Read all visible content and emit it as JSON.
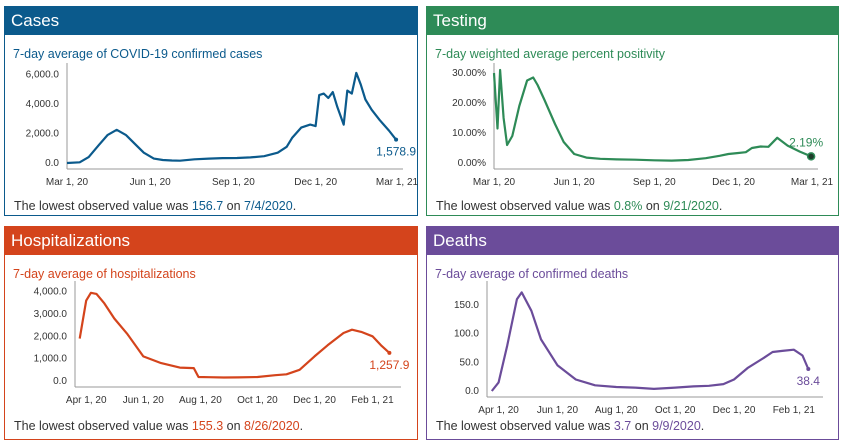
{
  "panels": [
    {
      "id": "cases",
      "title": "Cases",
      "color": "#0b5a8c",
      "subtitle": "7-day average of COVID-19 confirmed cases",
      "footer": {
        "prefix": "The lowest observed value was ",
        "value": "156.7",
        "mid": " on ",
        "date": "7/4/2020",
        "suffix": "."
      },
      "end_label": "1,578.9",
      "end_marker": "none"
    },
    {
      "id": "testing",
      "title": "Testing",
      "color": "#2e8b57",
      "subtitle": "7-day weighted average percent positivity",
      "footer": {
        "prefix": "The lowest observed value was ",
        "value": "0.8%",
        "mid": " on ",
        "date": "9/21/2020",
        "suffix": "."
      },
      "end_label": "2.19%",
      "end_marker": "circle"
    },
    {
      "id": "hospitalizations",
      "title": "Hospitalizations",
      "color": "#d4441c",
      "subtitle": "7-day average of hospitalizations",
      "footer": {
        "prefix": "The lowest observed value was ",
        "value": "155.3",
        "mid": " on ",
        "date": "8/26/2020",
        "suffix": "."
      },
      "end_label": "1,257.9",
      "end_marker": "none"
    },
    {
      "id": "deaths",
      "title": "Deaths",
      "color": "#6b4c9a",
      "subtitle": "7-day average of confirmed deaths",
      "footer": {
        "prefix": "The lowest observed value was ",
        "value": "3.7",
        "mid": " on ",
        "date": "9/9/2020",
        "suffix": "."
      },
      "end_label": "38.4",
      "end_marker": "none"
    }
  ],
  "chart_data": [
    {
      "type": "line",
      "title": "Cases",
      "subtitle": "7-day average of COVID-19 confirmed cases",
      "x_ticks": [
        "Mar 1, 20",
        "Jun 1, 20",
        "Sep 1, 20",
        "Dec 1, 20",
        "Mar 1, 21"
      ],
      "y_ticks": [
        "0.0",
        "2,000.0",
        "4,000.0",
        "6,000.0"
      ],
      "ylim": [
        0,
        6500
      ],
      "x": [
        "2020-03-01",
        "2020-03-15",
        "2020-03-25",
        "2020-04-05",
        "2020-04-15",
        "2020-04-25",
        "2020-05-05",
        "2020-05-15",
        "2020-05-25",
        "2020-06-05",
        "2020-06-15",
        "2020-06-25",
        "2020-07-04",
        "2020-07-20",
        "2020-08-05",
        "2020-08-20",
        "2020-09-05",
        "2020-09-20",
        "2020-10-05",
        "2020-10-20",
        "2020-10-30",
        "2020-11-05",
        "2020-11-15",
        "2020-11-25",
        "2020-12-01",
        "2020-12-05",
        "2020-12-10",
        "2020-12-15",
        "2020-12-20",
        "2020-12-25",
        "2021-01-01",
        "2021-01-05",
        "2021-01-10",
        "2021-01-15",
        "2021-01-20",
        "2021-01-25",
        "2021-02-01",
        "2021-02-10",
        "2021-02-20",
        "2021-02-28"
      ],
      "y": [
        0,
        50,
        400,
        1200,
        1900,
        2250,
        1900,
        1300,
        700,
        300,
        200,
        170,
        157,
        250,
        300,
        330,
        340,
        380,
        460,
        700,
        1100,
        1700,
        2400,
        2600,
        2500,
        4600,
        4700,
        4400,
        4800,
        3800,
        2600,
        4900,
        4700,
        6100,
        5300,
        4300,
        3600,
        2900,
        2200,
        1579
      ],
      "end_label": "1,578.9"
    },
    {
      "type": "line",
      "title": "Testing",
      "subtitle": "7-day weighted average percent positivity",
      "x_ticks": [
        "Mar 1, 20",
        "Jun 1, 20",
        "Sep 1, 20",
        "Dec 1, 20",
        "Mar 1, 21"
      ],
      "y_ticks": [
        "0.00%",
        "10.00%",
        "20.00%",
        "30.00%"
      ],
      "ylim": [
        0,
        32
      ],
      "x": [
        "2020-03-01",
        "2020-03-05",
        "2020-03-08",
        "2020-03-12",
        "2020-03-16",
        "2020-03-22",
        "2020-03-30",
        "2020-04-08",
        "2020-04-15",
        "2020-04-20",
        "2020-04-28",
        "2020-05-10",
        "2020-05-20",
        "2020-06-01",
        "2020-06-15",
        "2020-07-01",
        "2020-07-20",
        "2020-08-10",
        "2020-09-01",
        "2020-09-21",
        "2020-10-10",
        "2020-10-30",
        "2020-11-15",
        "2020-11-25",
        "2020-12-05",
        "2020-12-15",
        "2020-12-22",
        "2021-01-01",
        "2021-01-10",
        "2021-01-20",
        "2021-02-01",
        "2021-02-15",
        "2021-02-28"
      ],
      "y": [
        30,
        11.5,
        31,
        15,
        6,
        9,
        19,
        27.5,
        28.5,
        26,
        21,
        13,
        7,
        3,
        1.8,
        1.4,
        1.2,
        1.1,
        0.9,
        0.8,
        1.0,
        1.6,
        2.4,
        3.0,
        3.3,
        3.6,
        5.0,
        5.5,
        5.4,
        8.4,
        5.8,
        3.8,
        2.19
      ],
      "end_label": "2.19%"
    },
    {
      "type": "line",
      "title": "Hospitalizations",
      "subtitle": "7-day average of hospitalizations",
      "x_ticks": [
        "Apr 1, 20",
        "Jun 1, 20",
        "Aug 1, 20",
        "Oct 1, 20",
        "Dec 1, 20",
        "Feb 1, 21"
      ],
      "y_ticks": [
        "0.0",
        "1,000.0",
        "2,000.0",
        "3,000.0",
        "4,000.0"
      ],
      "ylim": [
        0,
        4300
      ],
      "x": [
        "2020-03-25",
        "2020-04-01",
        "2020-04-06",
        "2020-04-12",
        "2020-04-20",
        "2020-05-01",
        "2020-05-15",
        "2020-06-01",
        "2020-06-20",
        "2020-07-10",
        "2020-07-25",
        "2020-07-30",
        "2020-08-10",
        "2020-08-26",
        "2020-09-10",
        "2020-10-01",
        "2020-10-20",
        "2020-11-01",
        "2020-11-15",
        "2020-12-01",
        "2020-12-15",
        "2021-01-01",
        "2021-01-10",
        "2021-01-20",
        "2021-02-01",
        "2021-02-10",
        "2021-02-19"
      ],
      "y": [
        1900,
        3600,
        3950,
        3900,
        3500,
        2800,
        2100,
        1100,
        800,
        600,
        580,
        180,
        170,
        155,
        160,
        180,
        260,
        300,
        500,
        1100,
        1600,
        2150,
        2300,
        2200,
        2000,
        1600,
        1258
      ],
      "end_label": "1,257.9"
    },
    {
      "type": "line",
      "title": "Deaths",
      "subtitle": "7-day average of confirmed deaths",
      "x_ticks": [
        "Apr 1, 20",
        "Jun 1, 20",
        "Aug 1, 20",
        "Oct 1, 20",
        "Dec 1, 20",
        "Feb 1, 21"
      ],
      "y_ticks": [
        "0.0",
        "50.0",
        "100.0",
        "150.0"
      ],
      "ylim": [
        0,
        185
      ],
      "x": [
        "2020-03-25",
        "2020-04-01",
        "2020-04-10",
        "2020-04-20",
        "2020-04-25",
        "2020-05-05",
        "2020-05-15",
        "2020-06-01",
        "2020-06-20",
        "2020-07-10",
        "2020-08-01",
        "2020-08-20",
        "2020-09-09",
        "2020-10-01",
        "2020-10-20",
        "2020-11-05",
        "2020-11-20",
        "2020-12-01",
        "2020-12-15",
        "2021-01-01",
        "2021-01-10",
        "2021-01-20",
        "2021-02-01",
        "2021-02-10",
        "2021-02-16"
      ],
      "y": [
        0,
        15,
        80,
        160,
        172,
        140,
        90,
        45,
        20,
        10,
        7,
        6,
        3.7,
        6,
        8,
        9,
        12,
        20,
        40,
        58,
        68,
        70,
        72,
        62,
        38.4
      ],
      "end_label": "38.4"
    }
  ]
}
